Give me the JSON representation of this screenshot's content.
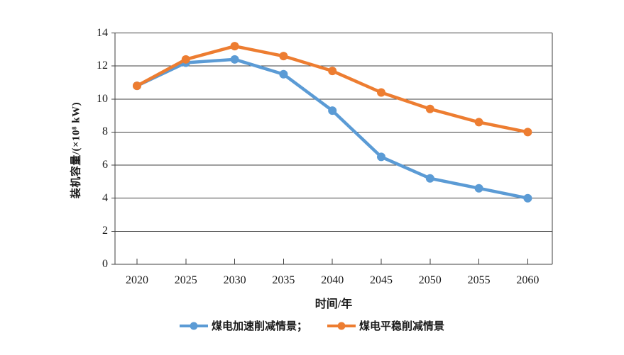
{
  "chart_data": {
    "type": "line",
    "title": "",
    "x": [
      "2020",
      "2025",
      "2030",
      "2035",
      "2040",
      "2045",
      "2050",
      "2055",
      "2060"
    ],
    "series": [
      {
        "name": "煤电加速削减情景",
        "legend_label": "煤电加速削减情景；",
        "color": "#5B9BD5",
        "values": [
          10.8,
          12.2,
          12.4,
          11.5,
          9.3,
          6.5,
          5.2,
          4.6,
          4.0
        ]
      },
      {
        "name": "煤电平稳削减情景",
        "legend_label": "煤电平稳削减情景",
        "color": "#ED7D31",
        "values": [
          10.8,
          12.4,
          13.2,
          12.6,
          11.7,
          10.4,
          9.4,
          8.6,
          8.0
        ]
      }
    ],
    "xlabel": "时间/年",
    "ylabel": "装机容量/(×10⁸ kW)",
    "ylim": [
      0,
      14
    ],
    "yticks": [
      0,
      2,
      4,
      6,
      8,
      10,
      12,
      14
    ],
    "grid": "horizontal",
    "legend_position": "bottom",
    "axis_color": "#3f3f3f",
    "marker": "circle",
    "line_width": 4.5
  }
}
